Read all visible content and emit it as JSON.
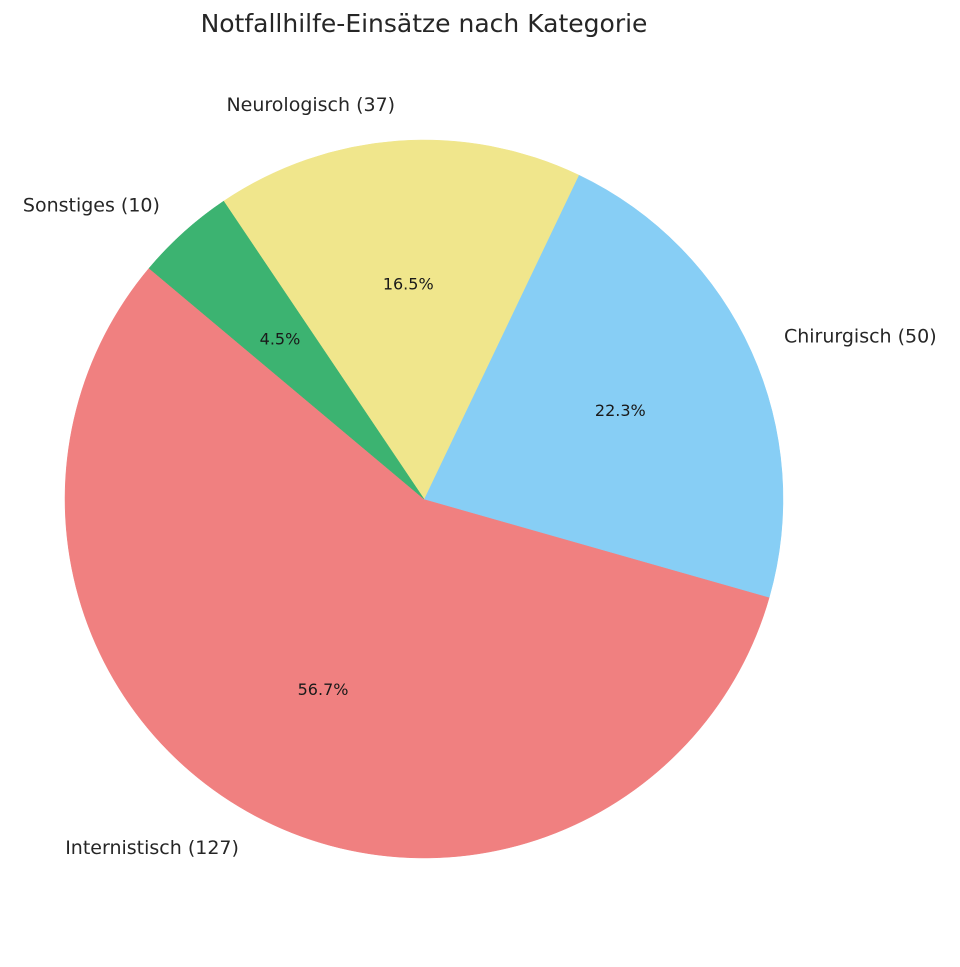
{
  "chart_data": {
    "type": "pie",
    "title": "Notfallhilfe-Einsätze nach Kategorie",
    "start_angle_deg": 140,
    "direction": "counterclockwise",
    "slices": [
      {
        "label": "Internistisch (127)",
        "value": 127,
        "percent_label": "56.7%",
        "color": "#F08080"
      },
      {
        "label": "Chirurgisch (50)",
        "value": 50,
        "percent_label": "22.3%",
        "color": "#87CEF5"
      },
      {
        "label": "Neurologisch (37)",
        "value": 37,
        "percent_label": "16.5%",
        "color": "#F0E68C"
      },
      {
        "label": "Sonstiges (10)",
        "value": 10,
        "percent_label": "4.5%",
        "color": "#3CB371"
      }
    ]
  }
}
